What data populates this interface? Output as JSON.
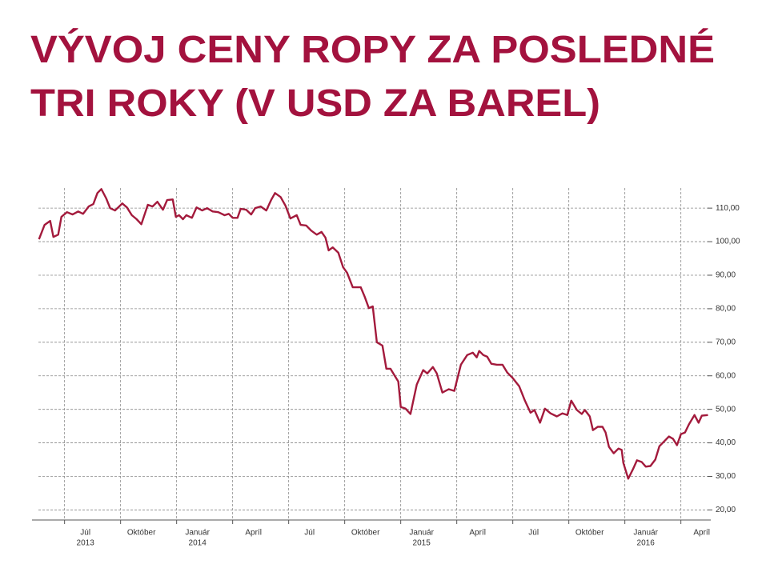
{
  "chart_data": {
    "type": "line",
    "title": [
      "VÝVOJ CENY ROPY ZA POSLEDNÉ",
      "TRI ROKY (V USD ZA BAREL)"
    ],
    "xlim": [
      -1.4,
      34.6
    ],
    "xticks": [
      {
        "value": 0,
        "label": "Júl",
        "year": "2013"
      },
      {
        "value": 3,
        "label": "Október"
      },
      {
        "value": 6,
        "label": "Január",
        "year": "2014"
      },
      {
        "value": 9,
        "label": "Apríl"
      },
      {
        "value": 12,
        "label": "Júl"
      },
      {
        "value": 15,
        "label": "Október"
      },
      {
        "value": 18,
        "label": "Január",
        "year": "2015"
      },
      {
        "value": 21,
        "label": "Apríl"
      },
      {
        "value": 24,
        "label": "Júl"
      },
      {
        "value": 27,
        "label": "Október"
      },
      {
        "value": 30,
        "label": "Január",
        "year": "2016"
      },
      {
        "value": 33,
        "label": "Apríl"
      }
    ],
    "ylim": [
      17,
      116
    ],
    "yticks": [
      {
        "value": 20,
        "label": "20,00"
      },
      {
        "value": 30,
        "label": "30,00"
      },
      {
        "value": 40,
        "label": "40,00"
      },
      {
        "value": 50,
        "label": "50,00"
      },
      {
        "value": 60,
        "label": "60,00"
      },
      {
        "value": 70,
        "label": "70,00"
      },
      {
        "value": 80,
        "label": "80,00"
      },
      {
        "value": 90,
        "label": "90,00"
      },
      {
        "value": 100,
        "label": "100,00"
      },
      {
        "value": 110,
        "label": "110,00"
      }
    ],
    "grid": true,
    "color": "#a31a3c",
    "x": [
      -1.37,
      -1.07,
      -0.77,
      -0.6,
      -0.34,
      -0.17,
      0.13,
      0.43,
      0.73,
      0.99,
      1.29,
      1.54,
      1.76,
      1.97,
      2.23,
      2.44,
      2.7,
      3.09,
      3.34,
      3.6,
      3.86,
      4.11,
      4.46,
      4.71,
      4.97,
      5.27,
      5.49,
      5.79,
      5.96,
      6.13,
      6.34,
      6.52,
      6.82,
      7.07,
      7.37,
      7.63,
      7.93,
      8.23,
      8.57,
      8.79,
      9.0,
      9.26,
      9.43,
      9.73,
      9.99,
      10.2,
      10.5,
      10.8,
      11.06,
      11.27,
      11.57,
      11.83,
      12.09,
      12.43,
      12.64,
      12.94,
      13.2,
      13.5,
      13.76,
      13.97,
      14.14,
      14.36,
      14.66,
      14.91,
      15.13,
      15.43,
      15.86,
      16.07,
      16.29,
      16.5,
      16.72,
      17.02,
      17.23,
      17.45,
      17.7,
      17.87,
      18.0,
      18.26,
      18.52,
      18.86,
      19.2,
      19.42,
      19.72,
      19.93,
      20.23,
      20.57,
      20.87,
      21.22,
      21.56,
      21.86,
      22.07,
      22.2,
      22.42,
      22.63,
      22.85,
      23.15,
      23.45,
      23.7,
      24.0,
      24.34,
      24.65,
      24.95,
      25.16,
      25.46,
      25.72,
      26.02,
      26.36,
      26.66,
      26.92,
      27.13,
      27.43,
      27.69,
      27.86,
      28.12,
      28.29,
      28.55,
      28.8,
      28.97,
      29.15,
      29.4,
      29.66,
      29.83,
      29.92,
      30.18,
      30.43,
      30.65,
      30.9,
      31.12,
      31.37,
      31.63,
      31.85,
      32.15,
      32.36,
      32.58,
      32.79,
      33.0,
      33.22,
      33.43,
      33.73,
      33.95,
      34.12,
      34.45
    ],
    "values": [
      100.7,
      105,
      106.2,
      101.4,
      102.1,
      107.4,
      108.8,
      108.1,
      109,
      108.3,
      110.5,
      111.2,
      114.5,
      115.7,
      112.9,
      110,
      109.3,
      111.4,
      110.2,
      107.9,
      106.7,
      105.2,
      111,
      110.5,
      111.9,
      109.5,
      112.4,
      112.6,
      107.4,
      107.9,
      106.7,
      107.9,
      107.1,
      110.2,
      109.3,
      110,
      109,
      108.8,
      107.9,
      108.3,
      107.1,
      107.1,
      109.8,
      109.5,
      108.1,
      110,
      110.5,
      109.3,
      112.4,
      114.5,
      113.3,
      110.7,
      106.9,
      107.9,
      105,
      104.8,
      103.3,
      102.1,
      102.9,
      101.2,
      97.4,
      98.3,
      96.7,
      92.4,
      90.7,
      86.4,
      86.4,
      83.6,
      80.2,
      80.7,
      70,
      69,
      62.1,
      62.1,
      59.8,
      58.3,
      50.7,
      50.2,
      48.6,
      57.4,
      61.7,
      60.7,
      62.6,
      60.7,
      55,
      56,
      55.5,
      63.3,
      66.2,
      66.9,
      65.5,
      67.4,
      66.2,
      65.7,
      63.6,
      63.3,
      63.3,
      61,
      59.3,
      56.9,
      52.6,
      49,
      49.8,
      46,
      50.2,
      48.8,
      47.9,
      48.8,
      48.3,
      52.6,
      49.8,
      48.6,
      49.8,
      47.9,
      43.8,
      44.8,
      44.8,
      43.1,
      38.8,
      36.9,
      38.3,
      37.9,
      34,
      29.3,
      32.1,
      34.8,
      34.3,
      32.9,
      33.1,
      35,
      39,
      40.7,
      41.9,
      41.2,
      39.3,
      42.6,
      43.1,
      45.5,
      48.3,
      46,
      48.1,
      48.3
    ]
  }
}
